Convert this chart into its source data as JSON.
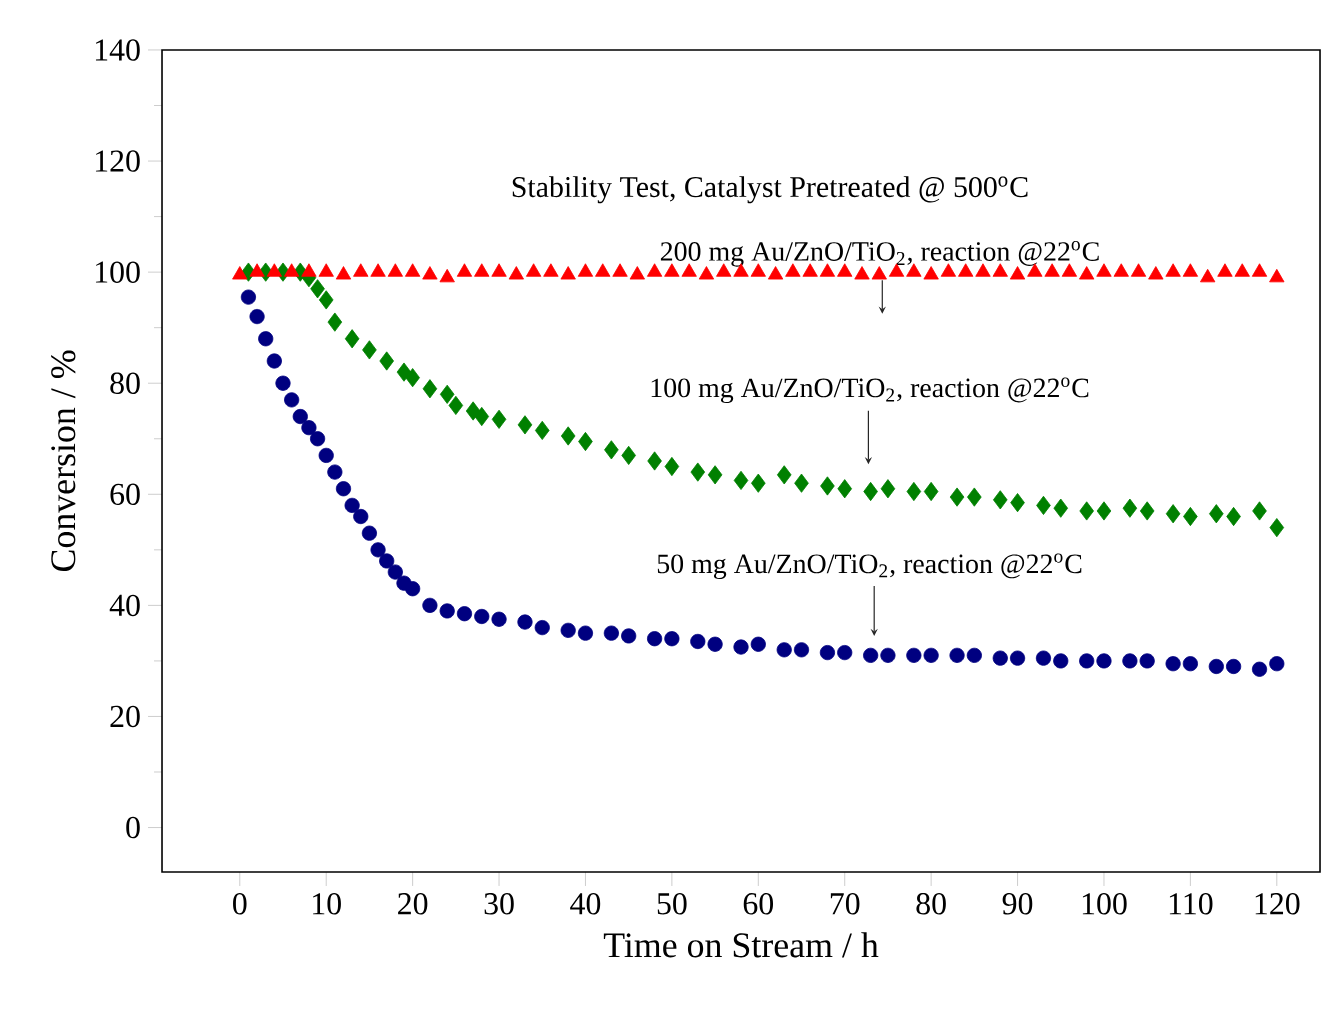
{
  "chart_data": {
    "type": "scatter",
    "title": "Stability Test, Catalyst Pretreated @ 500$^{o}$C",
    "xlabel": "Time on Stream / h",
    "ylabel": "Conversion / %",
    "xlim": [
      -9,
      125
    ],
    "ylim": [
      -8,
      140
    ],
    "xticks": [
      0,
      10,
      20,
      30,
      40,
      50,
      60,
      70,
      80,
      90,
      100,
      110,
      120
    ],
    "yticks": [
      0,
      20,
      40,
      60,
      80,
      100,
      120,
      140
    ],
    "series": [
      {
        "color": "#000080",
        "marker": "circle",
        "x": [
          1,
          2,
          3,
          4,
          5,
          6,
          7,
          8,
          9,
          10,
          11,
          12,
          13,
          14,
          15,
          16,
          17,
          18,
          19,
          20,
          22,
          24,
          26,
          28,
          30,
          33,
          35,
          38,
          40,
          43,
          45,
          48,
          50,
          53,
          55,
          58,
          60,
          63,
          65,
          68,
          70,
          73,
          75,
          78,
          80,
          83,
          85,
          88,
          90,
          93,
          95,
          98,
          100,
          103,
          105,
          108,
          110,
          113,
          115,
          118,
          120
        ],
        "values": [
          95.5,
          92,
          88,
          84,
          80,
          77,
          74,
          72,
          70,
          67,
          64,
          61,
          58,
          56,
          53,
          50,
          48,
          46,
          44,
          43,
          40,
          39,
          38.5,
          38,
          37.5,
          37,
          36,
          35.5,
          35,
          35,
          34.5,
          34,
          34,
          33.5,
          33,
          32.5,
          33,
          32,
          32,
          31.5,
          31.5,
          31,
          31,
          31,
          31,
          31,
          31,
          30.5,
          30.5,
          30.5,
          30,
          30,
          30,
          30,
          30,
          29.5,
          29.5,
          29,
          29,
          28.5,
          29.5
        ]
      },
      {
        "color": "#008000",
        "marker": "diamond",
        "x": [
          1,
          3,
          5,
          7,
          8,
          9,
          10,
          11,
          13,
          15,
          17,
          19,
          20,
          22,
          24,
          25,
          27,
          28,
          30,
          33,
          35,
          38,
          40,
          43,
          45,
          48,
          50,
          53,
          55,
          58,
          60,
          63,
          65,
          68,
          70,
          73,
          75,
          78,
          80,
          83,
          85,
          88,
          90,
          93,
          95,
          98,
          100,
          103,
          105,
          108,
          110,
          113,
          115,
          118,
          120
        ],
        "values": [
          100,
          100,
          100,
          100,
          99,
          97,
          95,
          91,
          88,
          86,
          84,
          82,
          81,
          79,
          78,
          76,
          75,
          74,
          73.5,
          72.5,
          71.5,
          70.5,
          69.5,
          68,
          67,
          66,
          65,
          64,
          63.5,
          62.5,
          62,
          63.5,
          62,
          61.5,
          61,
          60.5,
          61,
          60.5,
          60.5,
          59.5,
          59.5,
          59,
          58.5,
          58,
          57.5,
          57,
          57,
          57.5,
          57,
          56.5,
          56,
          56.5,
          56,
          57,
          54
        ]
      },
      {
        "color": "#ff0000",
        "marker": "triangle",
        "x": [
          0,
          2,
          4,
          6,
          8,
          10,
          12,
          14,
          16,
          18,
          20,
          22,
          24,
          26,
          28,
          30,
          32,
          34,
          36,
          38,
          40,
          42,
          44,
          46,
          48,
          50,
          52,
          54,
          56,
          58,
          60,
          62,
          64,
          66,
          68,
          70,
          72,
          74,
          76,
          78,
          80,
          82,
          84,
          86,
          88,
          90,
          92,
          94,
          96,
          98,
          100,
          102,
          104,
          106,
          108,
          110,
          112,
          114,
          116,
          118,
          120
        ],
        "values": [
          99.5,
          100,
          100,
          100,
          100,
          100,
          99.5,
          100,
          100,
          100,
          100,
          99.5,
          99,
          100,
          100,
          100,
          99.5,
          100,
          100,
          99.5,
          100,
          100,
          100,
          99.5,
          100,
          100,
          100,
          99.5,
          100,
          100,
          100,
          99.5,
          100,
          100,
          100,
          100,
          99.5,
          99.5,
          100,
          100,
          99.5,
          100,
          100,
          100,
          100,
          99.5,
          100,
          100,
          100,
          99.5,
          100,
          100,
          100,
          99.5,
          100,
          100,
          99,
          100,
          100,
          100,
          99
        ]
      }
    ],
    "annotations": [
      "200 mg Au/ZnO/TiO$_{2}$, reaction @22$^{o}$C",
      "100 mg Au/ZnO/TiO$_{2}$, reaction @22$^{o}$C",
      "50 mg Au/ZnO/TiO$_{2}$, reaction @22$^{o}$C"
    ]
  }
}
